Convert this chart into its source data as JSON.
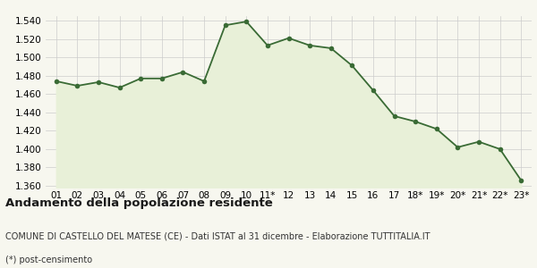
{
  "x_labels": [
    "01",
    "02",
    "03",
    "04",
    "05",
    "06",
    "07",
    "08",
    "09",
    "10",
    "11*",
    "12",
    "13",
    "14",
    "15",
    "16",
    "17",
    "18*",
    "19*",
    "20*",
    "21*",
    "22*",
    "23*"
  ],
  "values": [
    1474,
    1469,
    1473,
    1467,
    1477,
    1477,
    1484,
    1474,
    1535,
    1539,
    1513,
    1521,
    1513,
    1510,
    1491,
    1464,
    1436,
    1430,
    1422,
    1402,
    1408,
    1400,
    1366
  ],
  "line_color": "#3a6b35",
  "fill_color": "#e8f0d8",
  "marker_color": "#3a6b35",
  "bg_color": "#f7f7ef",
  "grid_color": "#cccccc",
  "ylim": [
    1358,
    1545
  ],
  "yticks": [
    1360,
    1380,
    1400,
    1420,
    1440,
    1460,
    1480,
    1500,
    1520,
    1540
  ],
  "title": "Andamento della popolazione residente",
  "subtitle": "COMUNE DI CASTELLO DEL MATESE (CE) - Dati ISTAT al 31 dicembre - Elaborazione TUTTITALIA.IT",
  "footnote": "(*) post-censimento",
  "title_fontsize": 9.5,
  "subtitle_fontsize": 7.0,
  "footnote_fontsize": 7.0,
  "tick_fontsize": 7.5
}
